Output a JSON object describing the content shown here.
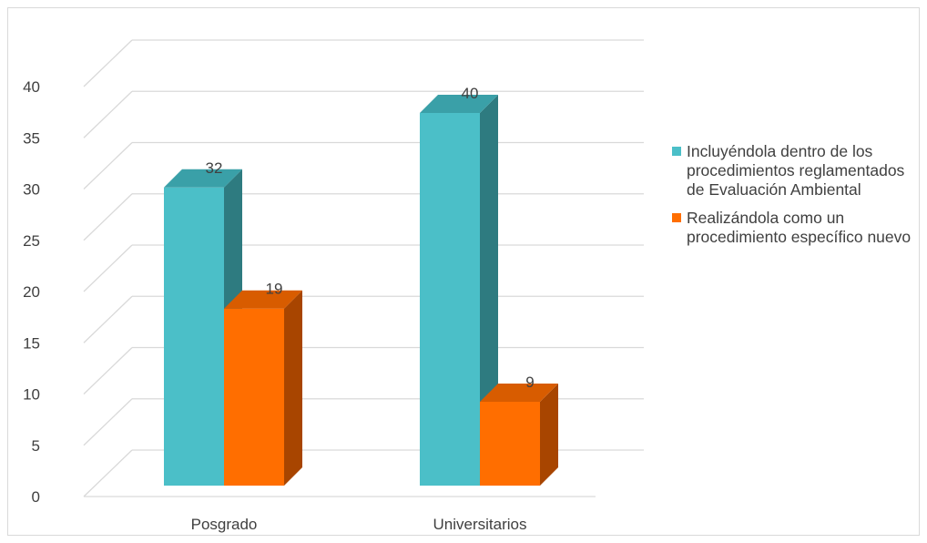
{
  "chart_data": {
    "type": "bar",
    "categories": [
      "Posgrado",
      "Universitarios"
    ],
    "series": [
      {
        "name": "Incluyéndola dentro de los procedimientos reglamentados de Evaluación Ambiental",
        "values": [
          32,
          40
        ],
        "color": "#4bbfc8",
        "side_color": "#2e7b80",
        "top_color": "#3aa0a8"
      },
      {
        "name": "Realizándola como un procedimiento específico nuevo",
        "values": [
          19,
          9
        ],
        "color": "#ff6e00",
        "side_color": "#a84500",
        "top_color": "#d85c00"
      }
    ],
    "ylim": [
      0,
      40
    ],
    "yticks": [
      "0",
      "5",
      "10",
      "15",
      "20",
      "25",
      "30",
      "35",
      "40"
    ],
    "data_labels": true,
    "grid": true,
    "style": "3d",
    "legend_position": "right"
  }
}
